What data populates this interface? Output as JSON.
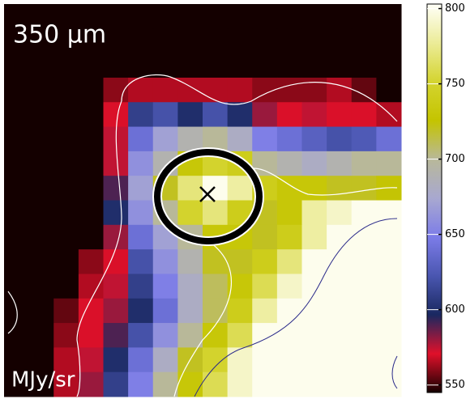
{
  "chart_data": {
    "type": "heatmap",
    "title": "350 μm",
    "unit_label": "MJy/sr",
    "colormap": [
      "#140000",
      "#e0102a",
      "#1a2860",
      "#4a56b0",
      "#7c7ce8",
      "#a8a8d0",
      "#b8b89a",
      "#c4c400",
      "#d4d430",
      "#ecec98",
      "#fffff8"
    ],
    "vlim": [
      545,
      803
    ],
    "colorbar_ticks": [
      550,
      600,
      650,
      700,
      750,
      800
    ],
    "z": [
      [
        545,
        545,
        545,
        545,
        545,
        545,
        545,
        545,
        545,
        545,
        545,
        545,
        545,
        545,
        545,
        545
      ],
      [
        545,
        545,
        545,
        545,
        545,
        545,
        545,
        545,
        545,
        545,
        545,
        545,
        545,
        545,
        545,
        545
      ],
      [
        545,
        545,
        545,
        545,
        545,
        545,
        545,
        545,
        545,
        545,
        545,
        545,
        545,
        545,
        545,
        545
      ],
      [
        545,
        545,
        545,
        545,
        560,
        565,
        565,
        565,
        565,
        565,
        560,
        560,
        560,
        565,
        555,
        545
      ],
      [
        545,
        545,
        545,
        545,
        570,
        610,
        620,
        600,
        620,
        600,
        580,
        570,
        575,
        570,
        570,
        565
      ],
      [
        545,
        545,
        545,
        545,
        575,
        640,
        670,
        690,
        700,
        680,
        650,
        640,
        630,
        620,
        625,
        640
      ],
      [
        545,
        545,
        545,
        545,
        575,
        660,
        690,
        730,
        750,
        740,
        700,
        690,
        680,
        690,
        700,
        700
      ],
      [
        545,
        545,
        545,
        545,
        590,
        670,
        720,
        770,
        800,
        780,
        740,
        730,
        730,
        720,
        720,
        725
      ],
      [
        545,
        545,
        545,
        545,
        600,
        660,
        700,
        750,
        770,
        740,
        720,
        730,
        780,
        790,
        800,
        800
      ],
      [
        545,
        545,
        545,
        545,
        580,
        640,
        670,
        700,
        730,
        730,
        720,
        740,
        780,
        800,
        800,
        800
      ],
      [
        545,
        545,
        545,
        560,
        570,
        620,
        660,
        690,
        720,
        720,
        740,
        770,
        800,
        800,
        800,
        800
      ],
      [
        545,
        545,
        545,
        565,
        575,
        610,
        650,
        680,
        710,
        730,
        760,
        790,
        800,
        800,
        800,
        800
      ],
      [
        545,
        545,
        555,
        570,
        580,
        600,
        640,
        680,
        710,
        740,
        780,
        800,
        800,
        800,
        800,
        800
      ],
      [
        545,
        545,
        560,
        570,
        590,
        620,
        660,
        700,
        730,
        760,
        800,
        800,
        800,
        800,
        800,
        800
      ],
      [
        545,
        545,
        565,
        575,
        600,
        640,
        680,
        720,
        750,
        790,
        800,
        800,
        800,
        800,
        800,
        800
      ],
      [
        545,
        545,
        565,
        580,
        610,
        650,
        700,
        730,
        760,
        790,
        800,
        800,
        800,
        800,
        800,
        800
      ]
    ]
  }
}
